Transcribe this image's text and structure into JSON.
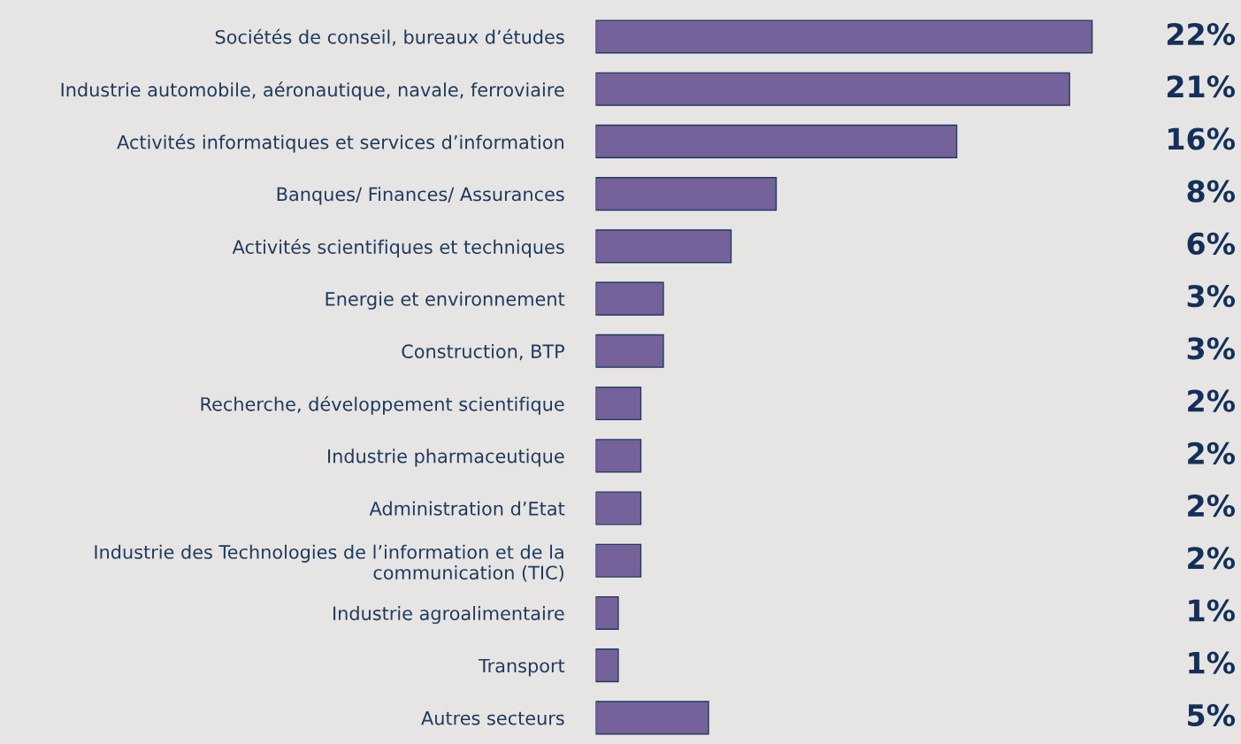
{
  "chart_data": {
    "type": "bar",
    "orientation": "horizontal",
    "categories": [
      "Sociétés de conseil, bureaux d’études",
      "Industrie automobile, aéronautique, navale, ferroviaire",
      "Activités informatiques et services d’information",
      "Banques/ Finances/ Assurances",
      "Activités scientifiques et techniques",
      "Energie et environnement",
      "Construction, BTP",
      "Recherche, développement scientifique",
      "Industrie pharmaceutique",
      "Administration d’Etat",
      "Industrie des Technologies de l’information et de la\ncommunication (TIC)",
      "Industrie agroalimentaire",
      "Transport",
      "Autres secteurs"
    ],
    "values": [
      22,
      21,
      16,
      8,
      6,
      3,
      3,
      2,
      2,
      2,
      2,
      1,
      1,
      5
    ],
    "value_labels": [
      "22%",
      "21%",
      "16%",
      "8%",
      "6%",
      "3%",
      "3%",
      "2%",
      "2%",
      "2%",
      "2%",
      "1%",
      "1%",
      "5%"
    ],
    "color": "#75629a",
    "grid": false,
    "legend": false
  }
}
